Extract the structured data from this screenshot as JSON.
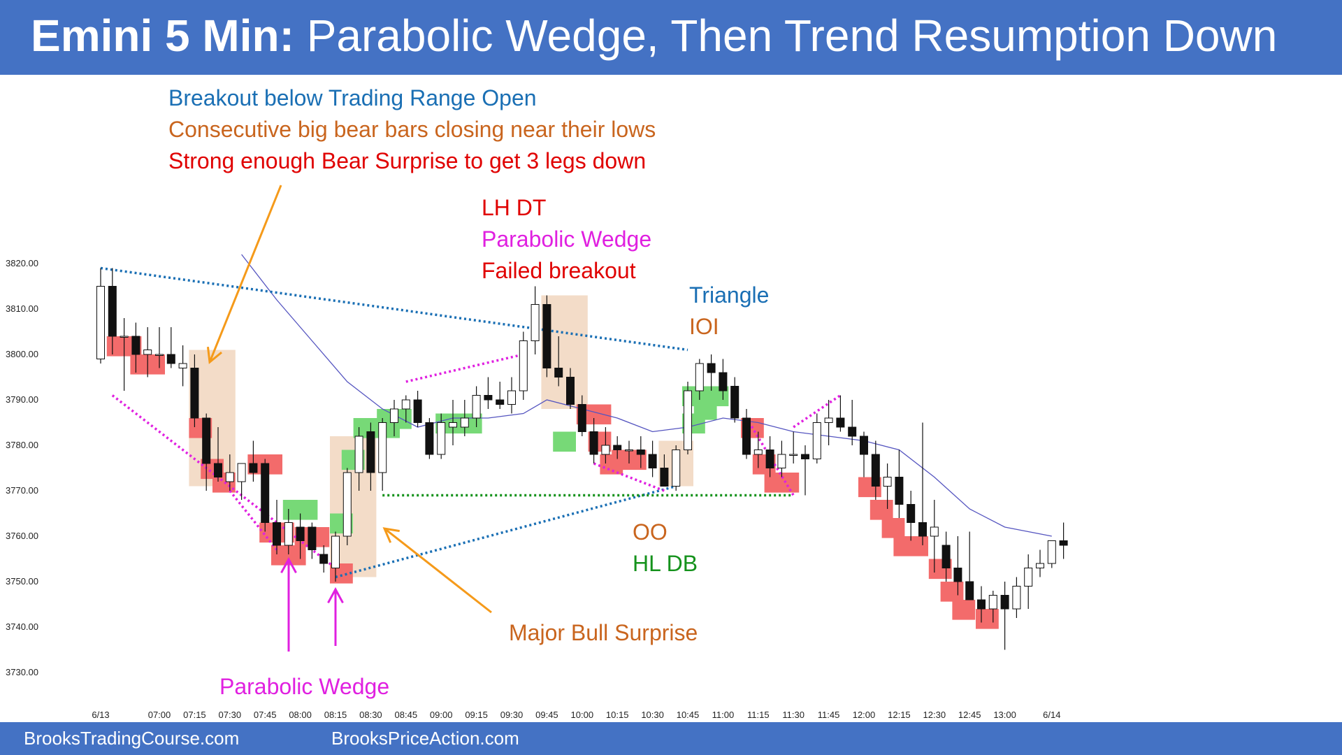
{
  "header": {
    "title_bold": "Emini 5 Min:",
    "title_rest": "Parabolic Wedge, Then Trend Resumption Down"
  },
  "footer": {
    "left": "BrooksTradingCourse.com",
    "right": "BrooksPriceAction.com"
  },
  "colors": {
    "header_bg": "#4472c4",
    "bull_box": "#77d977",
    "bear_box": "#f36b6b",
    "highlight": "#f2d8c2",
    "ema": "#5555c0",
    "blue": "#1a6fb4",
    "orange": "#c9651e",
    "red": "#e00000",
    "magenta": "#e020e0",
    "green": "#15921c",
    "arrow_orange": "#f59a1a"
  },
  "annotations": {
    "breakout": "Breakout below Trading Range Open",
    "consecutive": "Consecutive big bear bars closing near their lows",
    "strong": "Strong enough Bear Surprise to get 3 legs down",
    "lhdt": "LH DT",
    "pw_top": "Parabolic Wedge",
    "failed": "Failed breakout",
    "triangle": "Triangle",
    "ioi": "IOI",
    "oo": "OO",
    "hldb": "HL DB",
    "major_bull": "Major Bull Surprise",
    "pw_bottom": "Parabolic Wedge"
  },
  "chart_data": {
    "type": "candlestick",
    "y_ticks": [
      "3820.00",
      "3810.00",
      "3800.00",
      "3790.00",
      "3780.00",
      "3770.00",
      "3760.00",
      "3750.00",
      "3740.00",
      "3730.00"
    ],
    "y_tick_values": [
      3820,
      3810,
      3800,
      3790,
      3780,
      3770,
      3760,
      3750,
      3740,
      3730
    ],
    "ylim": [
      3727,
      3827
    ],
    "x_ticks": [
      "6/13",
      "07:00",
      "07:15",
      "07:30",
      "07:45",
      "08:00",
      "08:15",
      "08:30",
      "08:45",
      "09:00",
      "09:15",
      "09:30",
      "09:45",
      "10:00",
      "10:15",
      "10:30",
      "10:45",
      "11:00",
      "11:15",
      "11:30",
      "11:45",
      "12:00",
      "12:15",
      "12:30",
      "12:45",
      "13:00",
      "6/14"
    ],
    "x_tick_bar_index": [
      0,
      5,
      8,
      11,
      14,
      17,
      20,
      23,
      26,
      29,
      32,
      35,
      38,
      41,
      44,
      47,
      50,
      53,
      56,
      59,
      62,
      65,
      68,
      71,
      74,
      77,
      81
    ],
    "candles": [
      {
        "o": 3799,
        "h": 3819,
        "l": 3798,
        "c": 3815
      },
      {
        "o": 3815,
        "h": 3819,
        "l": 3800,
        "c": 3804
      },
      {
        "o": 3804,
        "h": 3808,
        "l": 3792,
        "c": 3804
      },
      {
        "o": 3804,
        "h": 3807,
        "l": 3796,
        "c": 3800
      },
      {
        "o": 3800,
        "h": 3806,
        "l": 3795,
        "c": 3801
      },
      {
        "o": 3800,
        "h": 3806,
        "l": 3797,
        "c": 3800
      },
      {
        "o": 3800,
        "h": 3806,
        "l": 3797,
        "c": 3798
      },
      {
        "o": 3797,
        "h": 3802,
        "l": 3793,
        "c": 3798
      },
      {
        "o": 3797,
        "h": 3800,
        "l": 3784,
        "c": 3786
      },
      {
        "o": 3786,
        "h": 3787,
        "l": 3770,
        "c": 3776
      },
      {
        "o": 3776,
        "h": 3784,
        "l": 3772,
        "c": 3773
      },
      {
        "o": 3772,
        "h": 3778,
        "l": 3770,
        "c": 3774
      },
      {
        "o": 3772,
        "h": 3776,
        "l": 3768,
        "c": 3776
      },
      {
        "o": 3776,
        "h": 3781,
        "l": 3772,
        "c": 3774
      },
      {
        "o": 3776,
        "h": 3777,
        "l": 3761,
        "c": 3763
      },
      {
        "o": 3763,
        "h": 3768,
        "l": 3756,
        "c": 3758
      },
      {
        "o": 3758,
        "h": 3766,
        "l": 3756,
        "c": 3763
      },
      {
        "o": 3762,
        "h": 3765,
        "l": 3755,
        "c": 3759
      },
      {
        "o": 3762,
        "h": 3763,
        "l": 3755,
        "c": 3757
      },
      {
        "o": 3756,
        "h": 3758,
        "l": 3752,
        "c": 3754
      },
      {
        "o": 3753,
        "h": 3761,
        "l": 3750,
        "c": 3760
      },
      {
        "o": 3760,
        "h": 3775,
        "l": 3758,
        "c": 3774
      },
      {
        "o": 3774,
        "h": 3784,
        "l": 3770,
        "c": 3782
      },
      {
        "o": 3783,
        "h": 3785,
        "l": 3770,
        "c": 3774
      },
      {
        "o": 3774,
        "h": 3786,
        "l": 3770,
        "c": 3785
      },
      {
        "o": 3785,
        "h": 3790,
        "l": 3782,
        "c": 3788
      },
      {
        "o": 3788,
        "h": 3791,
        "l": 3785,
        "c": 3790
      },
      {
        "o": 3790,
        "h": 3792,
        "l": 3784,
        "c": 3785
      },
      {
        "o": 3785,
        "h": 3786,
        "l": 3777,
        "c": 3778
      },
      {
        "o": 3778,
        "h": 3787,
        "l": 3777,
        "c": 3785
      },
      {
        "o": 3784,
        "h": 3790,
        "l": 3780,
        "c": 3785
      },
      {
        "o": 3784,
        "h": 3790,
        "l": 3782,
        "c": 3786
      },
      {
        "o": 3786,
        "h": 3793,
        "l": 3784,
        "c": 3791
      },
      {
        "o": 3791,
        "h": 3795,
        "l": 3788,
        "c": 3790
      },
      {
        "o": 3790,
        "h": 3794,
        "l": 3788,
        "c": 3789
      },
      {
        "o": 3789,
        "h": 3795,
        "l": 3787,
        "c": 3792
      },
      {
        "o": 3792,
        "h": 3805,
        "l": 3790,
        "c": 3803
      },
      {
        "o": 3803,
        "h": 3815,
        "l": 3800,
        "c": 3811
      },
      {
        "o": 3811,
        "h": 3813,
        "l": 3795,
        "c": 3797
      },
      {
        "o": 3797,
        "h": 3804,
        "l": 3793,
        "c": 3795
      },
      {
        "o": 3795,
        "h": 3797,
        "l": 3788,
        "c": 3789
      },
      {
        "o": 3789,
        "h": 3791,
        "l": 3782,
        "c": 3783
      },
      {
        "o": 3783,
        "h": 3786,
        "l": 3776,
        "c": 3778
      },
      {
        "o": 3778,
        "h": 3784,
        "l": 3776,
        "c": 3780
      },
      {
        "o": 3780,
        "h": 3782,
        "l": 3777,
        "c": 3779
      },
      {
        "o": 3779,
        "h": 3781,
        "l": 3776,
        "c": 3779
      },
      {
        "o": 3779,
        "h": 3782,
        "l": 3775,
        "c": 3778
      },
      {
        "o": 3778,
        "h": 3781,
        "l": 3773,
        "c": 3775
      },
      {
        "o": 3775,
        "h": 3778,
        "l": 3771,
        "c": 3771
      },
      {
        "o": 3771,
        "h": 3780,
        "l": 3770,
        "c": 3779
      },
      {
        "o": 3779,
        "h": 3794,
        "l": 3778,
        "c": 3792
      },
      {
        "o": 3792,
        "h": 3799,
        "l": 3790,
        "c": 3798
      },
      {
        "o": 3798,
        "h": 3800,
        "l": 3792,
        "c": 3796
      },
      {
        "o": 3796,
        "h": 3799,
        "l": 3790,
        "c": 3792
      },
      {
        "o": 3793,
        "h": 3795,
        "l": 3785,
        "c": 3786
      },
      {
        "o": 3786,
        "h": 3788,
        "l": 3777,
        "c": 3778
      },
      {
        "o": 3778,
        "h": 3783,
        "l": 3775,
        "c": 3779
      },
      {
        "o": 3779,
        "h": 3782,
        "l": 3773,
        "c": 3775
      },
      {
        "o": 3775,
        "h": 3781,
        "l": 3773,
        "c": 3778
      },
      {
        "o": 3778,
        "h": 3783,
        "l": 3776,
        "c": 3778
      },
      {
        "o": 3778,
        "h": 3780,
        "l": 3769,
        "c": 3777
      },
      {
        "o": 3777,
        "h": 3787,
        "l": 3776,
        "c": 3785
      },
      {
        "o": 3785,
        "h": 3790,
        "l": 3780,
        "c": 3786
      },
      {
        "o": 3786,
        "h": 3791,
        "l": 3783,
        "c": 3784
      },
      {
        "o": 3784,
        "h": 3790,
        "l": 3780,
        "c": 3782
      },
      {
        "o": 3782,
        "h": 3783,
        "l": 3773,
        "c": 3778
      },
      {
        "o": 3778,
        "h": 3781,
        "l": 3768,
        "c": 3771
      },
      {
        "o": 3771,
        "h": 3776,
        "l": 3766,
        "c": 3773
      },
      {
        "o": 3773,
        "h": 3779,
        "l": 3764,
        "c": 3767
      },
      {
        "o": 3767,
        "h": 3770,
        "l": 3759,
        "c": 3763
      },
      {
        "o": 3763,
        "h": 3785,
        "l": 3758,
        "c": 3760
      },
      {
        "o": 3760,
        "h": 3768,
        "l": 3752,
        "c": 3762
      },
      {
        "o": 3758,
        "h": 3761,
        "l": 3750,
        "c": 3753
      },
      {
        "o": 3753,
        "h": 3760,
        "l": 3747,
        "c": 3750
      },
      {
        "o": 3750,
        "h": 3761,
        "l": 3746,
        "c": 3746
      },
      {
        "o": 3746,
        "h": 3749,
        "l": 3741,
        "c": 3744
      },
      {
        "o": 3744,
        "h": 3748,
        "l": 3741,
        "c": 3747
      },
      {
        "o": 3747,
        "h": 3750,
        "l": 3735,
        "c": 3744
      },
      {
        "o": 3744,
        "h": 3751,
        "l": 3742,
        "c": 3749
      },
      {
        "o": 3749,
        "h": 3756,
        "l": 3744,
        "c": 3753
      },
      {
        "o": 3753,
        "h": 3757,
        "l": 3751,
        "c": 3754
      },
      {
        "o": 3754,
        "h": 3759,
        "l": 3753,
        "c": 3759
      },
      {
        "o": 3759,
        "h": 3763,
        "l": 3755,
        "c": 3758
      }
    ],
    "ema": [
      {
        "i": 12,
        "v": 3822
      },
      {
        "i": 15,
        "v": 3812
      },
      {
        "i": 18,
        "v": 3803
      },
      {
        "i": 21,
        "v": 3794
      },
      {
        "i": 24,
        "v": 3788
      },
      {
        "i": 27,
        "v": 3784
      },
      {
        "i": 30,
        "v": 3786
      },
      {
        "i": 33,
        "v": 3786
      },
      {
        "i": 36,
        "v": 3787
      },
      {
        "i": 38,
        "v": 3790
      },
      {
        "i": 41,
        "v": 3788
      },
      {
        "i": 44,
        "v": 3786
      },
      {
        "i": 47,
        "v": 3783
      },
      {
        "i": 50,
        "v": 3784
      },
      {
        "i": 53,
        "v": 3786
      },
      {
        "i": 56,
        "v": 3785
      },
      {
        "i": 59,
        "v": 3783
      },
      {
        "i": 62,
        "v": 3782
      },
      {
        "i": 65,
        "v": 3781
      },
      {
        "i": 68,
        "v": 3779
      },
      {
        "i": 71,
        "v": 3773
      },
      {
        "i": 74,
        "v": 3766
      },
      {
        "i": 77,
        "v": 3762
      },
      {
        "i": 79,
        "v": 3761
      },
      {
        "i": 81,
        "v": 3760
      }
    ]
  }
}
